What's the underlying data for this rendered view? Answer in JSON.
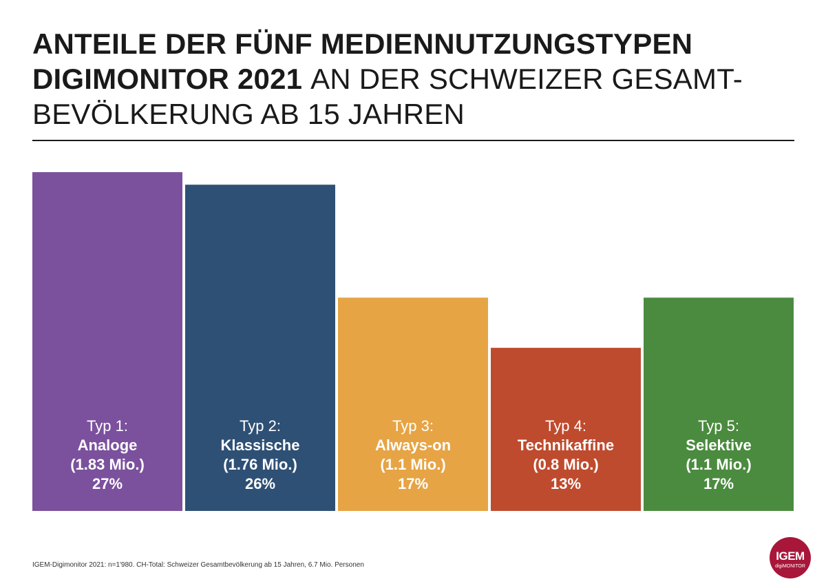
{
  "title": {
    "line1": "ANTEILE DER FÜNF MEDIENNUTZUNGSTYPEN",
    "line2_bold": "DIGIMONITOR 2021",
    "line2_light": "AN DER SCHWEIZER GESAMT-",
    "line3": "BEVÖLKERUNG AB 15 JAHREN"
  },
  "chart_data": {
    "type": "bar",
    "categories": [
      "Typ 1: Analoge",
      "Typ 2: Klassische",
      "Typ 3: Always-on",
      "Typ 4: Technikaffine",
      "Typ 5: Selektive"
    ],
    "values": [
      27,
      26,
      17,
      13,
      17
    ],
    "unit": "%",
    "ylim": [
      0,
      27
    ],
    "grid": false,
    "bars": [
      {
        "type_label": "Typ 1:",
        "name": "Analoge",
        "persons": "(1.83 Mio.)",
        "percent": "27%",
        "value": 27,
        "color": "#7b519d"
      },
      {
        "type_label": "Typ 2:",
        "name": "Klassische",
        "persons": "(1.76 Mio.)",
        "percent": "26%",
        "value": 26,
        "color": "#2f5075"
      },
      {
        "type_label": "Typ 3:",
        "name": "Always-on",
        "persons": "(1.1 Mio.)",
        "percent": "17%",
        "value": 17,
        "color": "#e6a445"
      },
      {
        "type_label": "Typ 4:",
        "name": "Technikaffine",
        "persons": "(0.8 Mio.)",
        "percent": "13%",
        "value": 13,
        "color": "#bf4b2e"
      },
      {
        "type_label": "Typ 5:",
        "name": "Selektive",
        "persons": "(1.1 Mio.)",
        "percent": "17%",
        "value": 17,
        "color": "#4b8b3f"
      }
    ]
  },
  "footnote": "IGEM-Digimonitor 2021: n=1'980. CH-Total: Schweizer Gesamtbevölkerung ab 15 Jahren, 6.7 Mio. Personen",
  "logo": {
    "big": "IGEM",
    "small": "digiMONITOR",
    "color": "#a8163a"
  }
}
